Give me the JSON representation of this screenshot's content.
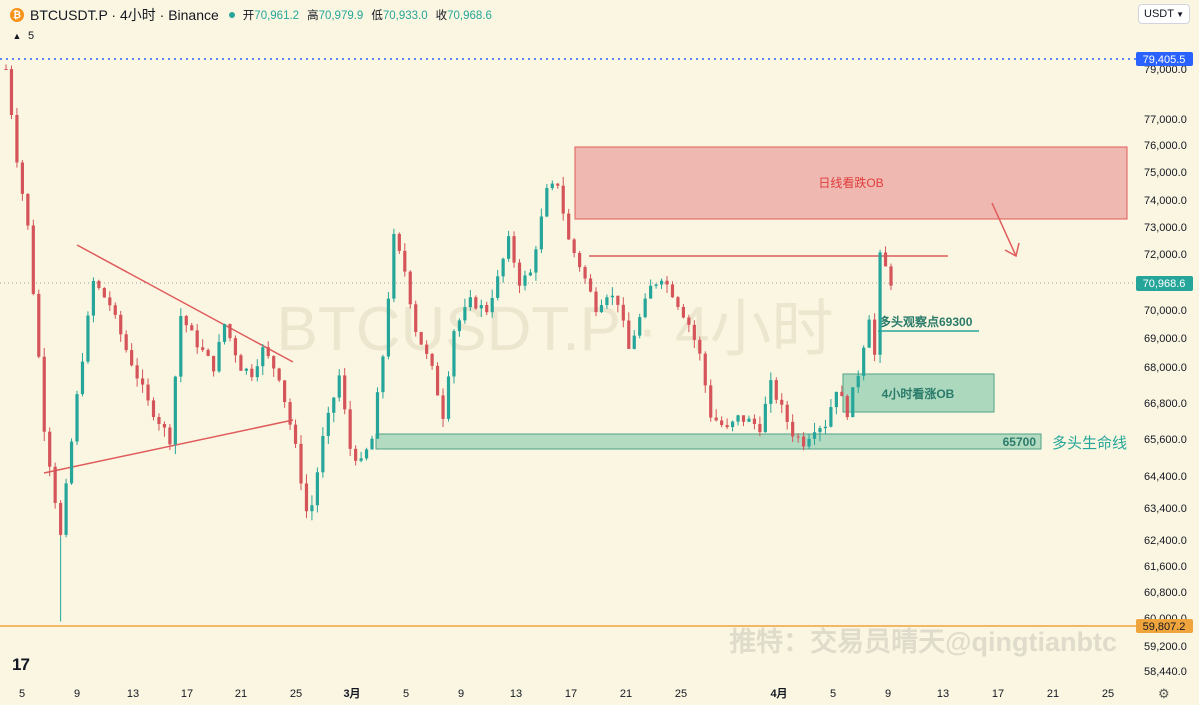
{
  "header": {
    "symbol": "BTCUSDT.P · 4小时 · Binance",
    "open_label": "开",
    "open": "70,961.2",
    "high_label": "高",
    "high": "70,979.9",
    "low_label": "低",
    "low": "70,933.0",
    "close_label": "收",
    "close": "70,968.6",
    "volume_indicator": "5",
    "currency": "USDT"
  },
  "colors": {
    "bull": "#26a69a",
    "bear": "#d5545a",
    "background": "#faf6e1",
    "axis_tag": "#2962ff",
    "support": "#f0a43c",
    "zone_red": "#e88f8f",
    "zone_green": "#6bbfa3"
  },
  "chart_data": {
    "type": "candlestick",
    "title": "BTCUSDT.P · 4小时 · Binance",
    "price_axis": {
      "ticks": [
        "79,000.0",
        "77,000.0",
        "76,000.0",
        "75,000.0",
        "74,000.0",
        "73,000.0",
        "72,000.0",
        "70,000.0",
        "69,000.0",
        "68,000.0",
        "66,800.0",
        "65,600.0",
        "64,400.0",
        "63,400.0",
        "62,400.0",
        "61,600.0",
        "60,800.0",
        "60,000.0",
        "59,200.0",
        "58,440.0"
      ],
      "top_tag": "79,405.5",
      "last_price_tag": "70,968.6",
      "support_tag": "59,807.2"
    },
    "time_axis": [
      "5",
      "9",
      "13",
      "17",
      "21",
      "25",
      "3月",
      "5",
      "9",
      "13",
      "17",
      "21",
      "25",
      "4月",
      "5",
      "9",
      "13",
      "17",
      "21",
      "25"
    ],
    "last_price": 70968.6,
    "range_high": 79405.5,
    "support_level": 59807.2,
    "annotations": {
      "bear_ob": "日线看跌OB",
      "bull_watch": "多头观察点69300",
      "bull_ob": "4小时看涨OB",
      "lifeline_value": "65700",
      "lifeline_label": "多头生命线"
    },
    "watermark": "BTCUSDT.P · 4小时",
    "credit": "推特：交易员晴天@qingtianbtc",
    "series_path": [
      [
        0,
        79000
      ],
      [
        2,
        75500
      ],
      [
        4,
        73000
      ],
      [
        7,
        66000
      ],
      [
        10,
        62500
      ],
      [
        13,
        67000
      ],
      [
        16,
        71000
      ],
      [
        19,
        70200
      ],
      [
        22,
        68600
      ],
      [
        26,
        66800
      ],
      [
        30,
        65600
      ],
      [
        32,
        69800
      ],
      [
        35,
        68800
      ],
      [
        38,
        68000
      ],
      [
        40,
        69500
      ],
      [
        43,
        68000
      ],
      [
        45,
        67800
      ],
      [
        47,
        68600
      ],
      [
        50,
        67700
      ],
      [
        53,
        65300
      ],
      [
        55,
        63300
      ],
      [
        56,
        63500
      ],
      [
        58,
        65600
      ],
      [
        61,
        67700
      ],
      [
        63,
        65300
      ],
      [
        65,
        64800
      ],
      [
        67,
        65600
      ],
      [
        69,
        68400
      ],
      [
        71,
        72600
      ],
      [
        73,
        71400
      ],
      [
        75,
        69300
      ],
      [
        78,
        67900
      ],
      [
        80,
        66400
      ],
      [
        82,
        69300
      ],
      [
        85,
        70300
      ],
      [
        88,
        70000
      ],
      [
        90,
        71100
      ],
      [
        92,
        72500
      ],
      [
        94,
        71000
      ],
      [
        96,
        71300
      ],
      [
        99,
        74300
      ],
      [
        101,
        74600
      ],
      [
        103,
        72500
      ],
      [
        105,
        71600
      ],
      [
        108,
        70100
      ],
      [
        110,
        70600
      ],
      [
        112,
        70300
      ],
      [
        114,
        68600
      ],
      [
        116,
        69700
      ],
      [
        118,
        70800
      ],
      [
        120,
        71200
      ],
      [
        122,
        70600
      ],
      [
        125,
        69500
      ],
      [
        127,
        68400
      ],
      [
        129,
        66400
      ],
      [
        132,
        65900
      ],
      [
        134,
        66300
      ],
      [
        136,
        66200
      ],
      [
        138,
        66000
      ],
      [
        140,
        67400
      ],
      [
        142,
        66600
      ],
      [
        144,
        65800
      ],
      [
        146,
        65500
      ],
      [
        148,
        66000
      ],
      [
        150,
        66100
      ],
      [
        152,
        67300
      ],
      [
        154,
        66500
      ],
      [
        156,
        67800
      ],
      [
        158,
        69800
      ],
      [
        159,
        68400
      ],
      [
        160,
        71900
      ],
      [
        161,
        71500
      ],
      [
        162,
        71000
      ]
    ]
  }
}
